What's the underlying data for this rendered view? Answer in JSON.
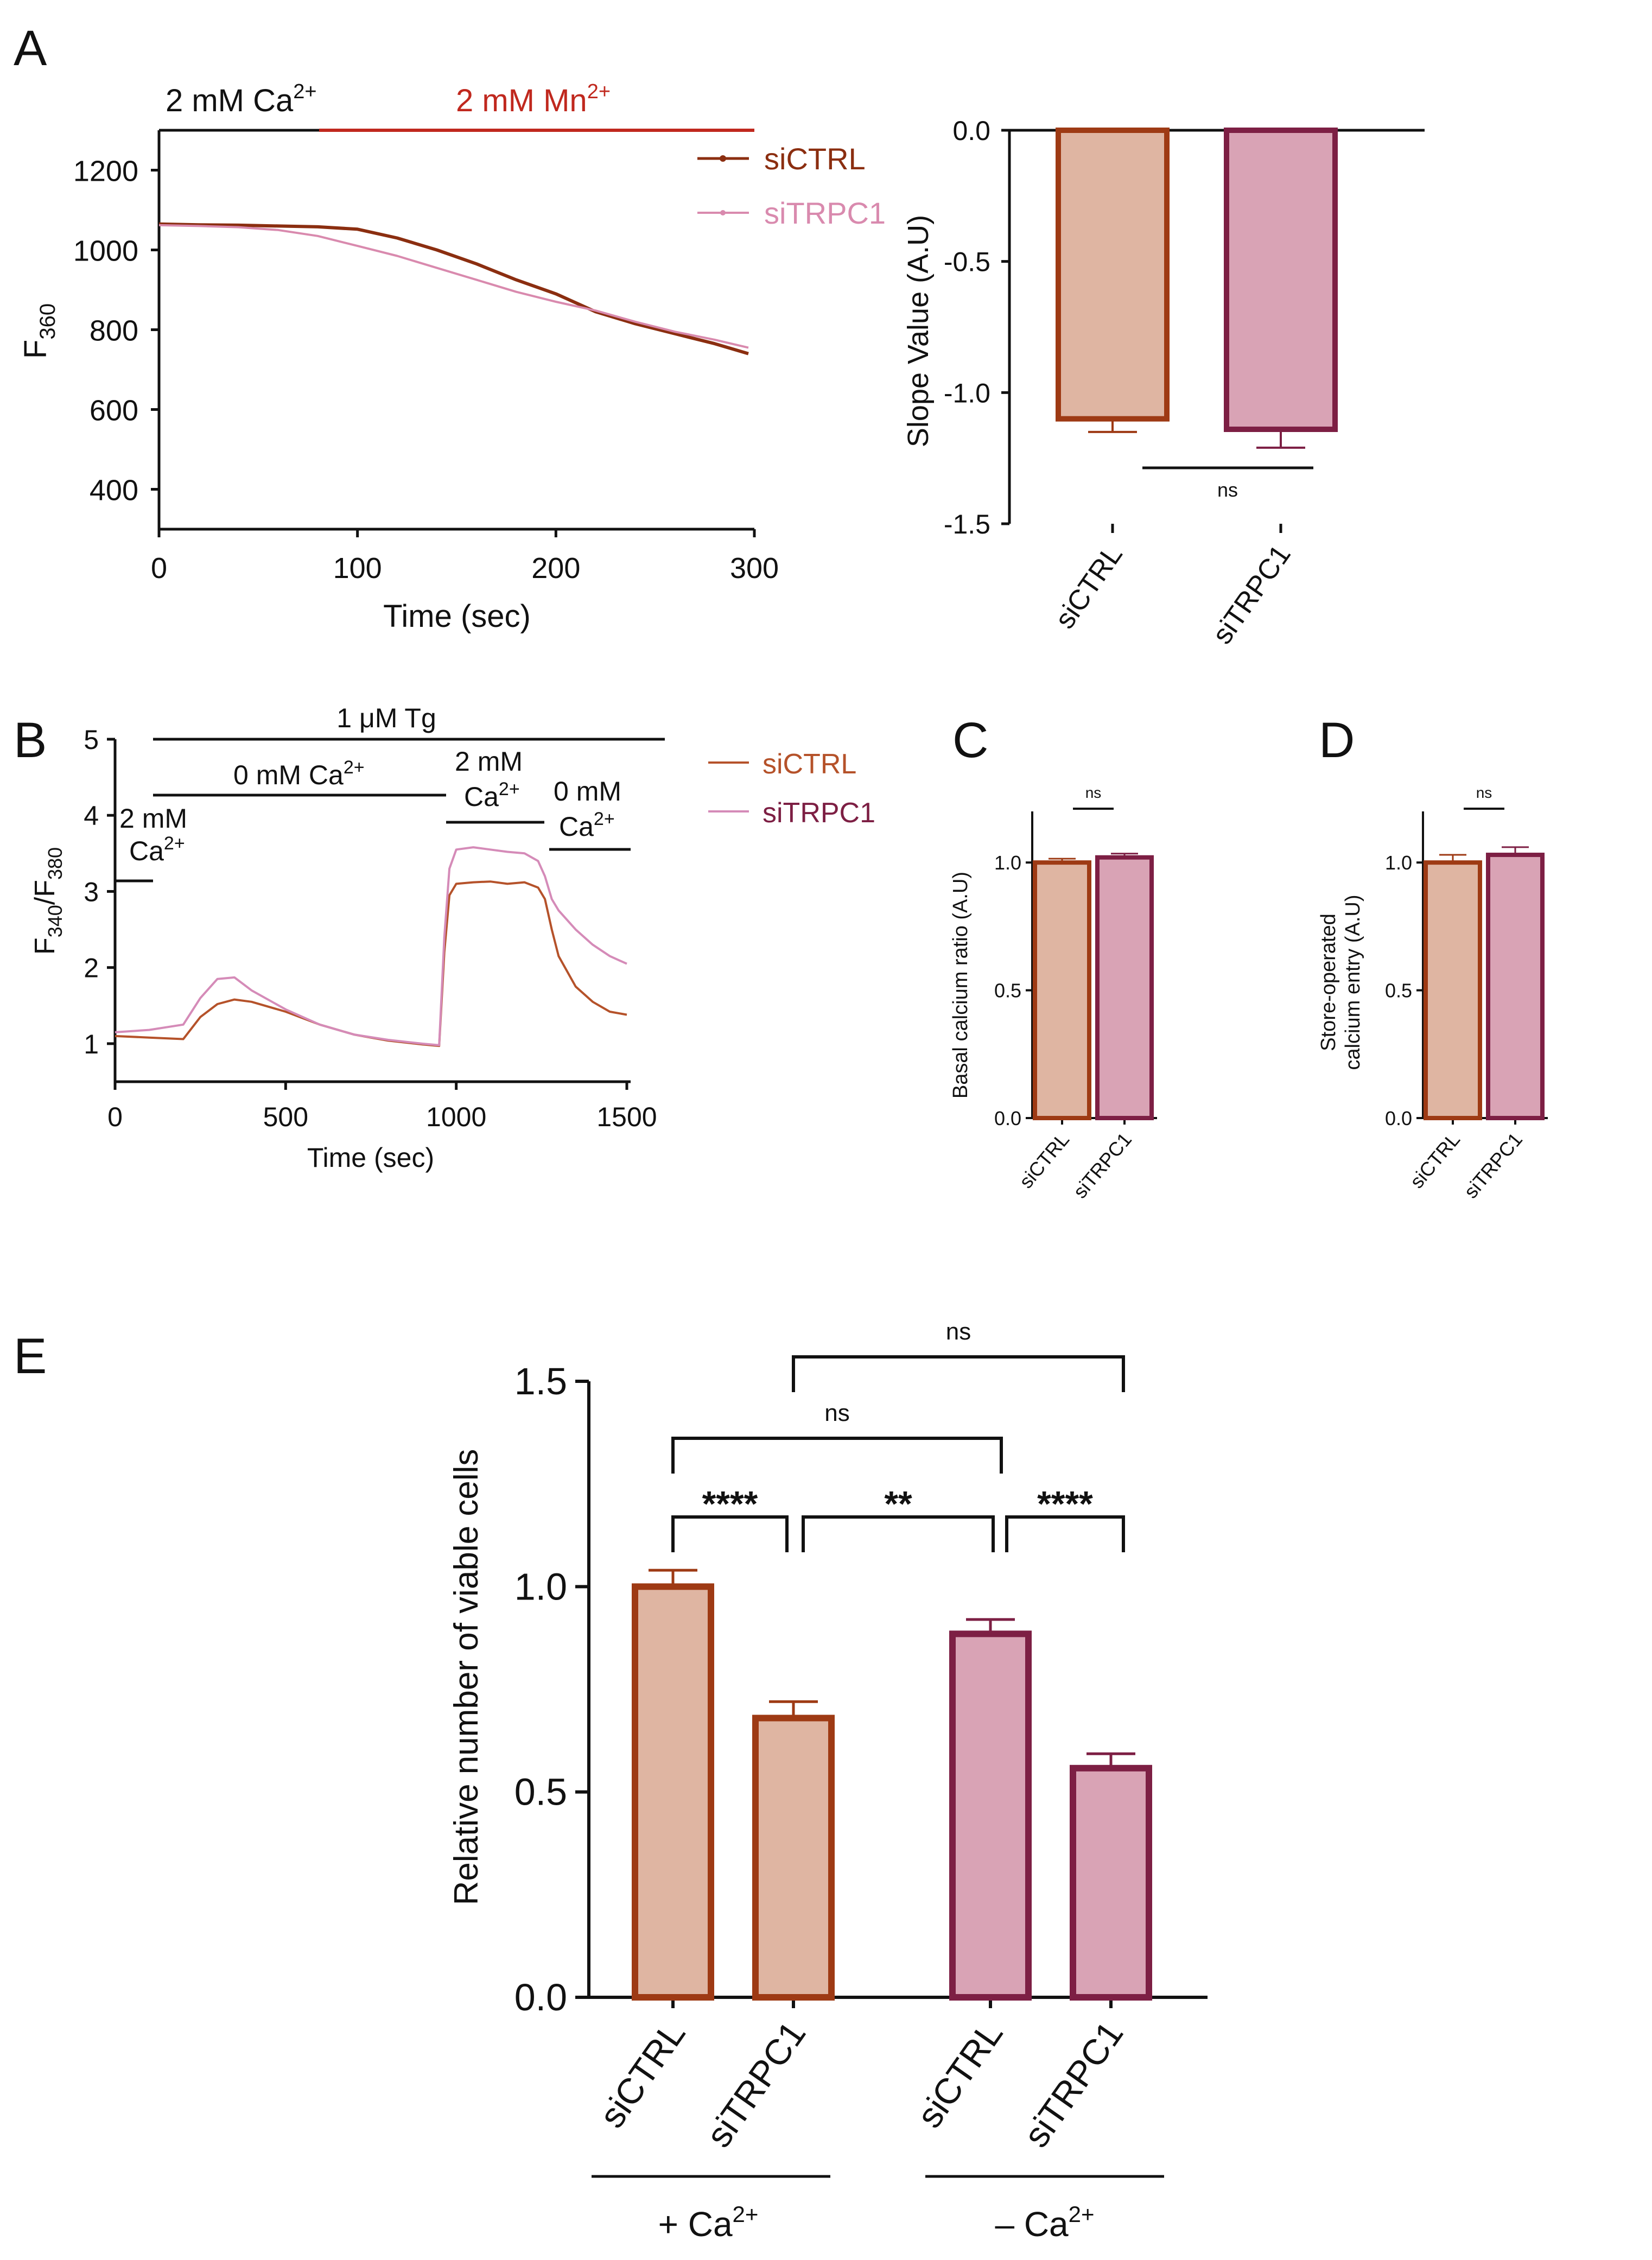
{
  "colors": {
    "ctrl_line": "#8B2E10",
    "trpc1_line": "#D98AAE",
    "b_ctrl_line": "#B5522A",
    "b_trpc1_line": "#D58BB8",
    "ctrl_fill": "#DFB5A2",
    "ctrl_edge": "#9E3A14",
    "trpc1_fill": "#D9A3B5",
    "trpc1_edge": "#7D1F44",
    "mn_red": "#C0281E",
    "trpc1_legend_text": "#7D1F44",
    "black": "#111111"
  },
  "panels": {
    "A": {
      "letter": "A",
      "bar_ca": "2 mM Ca",
      "bar_ca_sup": "2+",
      "bar_mn": "2 mM Mn",
      "bar_mn_sup": "2+",
      "ylabel": "F",
      "ylabel_sub": "360",
      "xlabel": "Time (sec)",
      "legend": [
        "siCTRL",
        "siTRPC1"
      ]
    },
    "A2": {
      "ylabel": "Slope Value (A.U)",
      "sig": "ns"
    },
    "B": {
      "letter": "B",
      "tg": "1 μM Tg",
      "ca0": "0 mM Ca",
      "ca0_sup": "2+",
      "ca2_left_1": "2 mM",
      "ca2_left_2": "Ca",
      "ca2_left_sup": "2+",
      "ca2_mid_1": "2 mM",
      "ca2_mid_2": "Ca",
      "ca2_mid_sup": "2+",
      "ca0_right_1": "0 mM",
      "ca0_right_2": "Ca",
      "ca0_right_sup": "2+",
      "ylabel": "F",
      "ylabel_sub1": "340",
      "ylabel_mid": "/F",
      "ylabel_sub2": "380",
      "xlabel": "Time (sec)",
      "legend": [
        "siCTRL",
        "siTRPC1"
      ]
    },
    "C": {
      "letter": "C",
      "ylabel": "Basal calcium ratio (A.U)",
      "sig": "ns"
    },
    "D": {
      "letter": "D",
      "ylabel_1": "Store-operated",
      "ylabel_2": "calcium entry (A.U)",
      "sig": "ns"
    },
    "E": {
      "letter": "E",
      "ylabel": "Relative number of viable cells",
      "group1": "+ Ca",
      "group1_sup": "2+",
      "group2": "– Ca",
      "group2_sup": "2+",
      "sig": [
        "****",
        "**",
        "****",
        "ns",
        "ns"
      ]
    }
  },
  "chart_data": [
    {
      "id": "A",
      "type": "line",
      "xlabel": "Time (sec)",
      "ylabel": "F360",
      "xlim": [
        0,
        300
      ],
      "ylim": [
        300,
        1300
      ],
      "xticks": [
        0,
        100,
        200,
        300
      ],
      "yticks": [
        400,
        600,
        800,
        1000,
        1200
      ],
      "series": [
        {
          "name": "siCTRL",
          "x": [
            0,
            20,
            40,
            60,
            80,
            100,
            120,
            140,
            160,
            180,
            200,
            220,
            240,
            260,
            280,
            297
          ],
          "y": [
            1065,
            1063,
            1062,
            1060,
            1058,
            1052,
            1030,
            1000,
            965,
            925,
            890,
            845,
            815,
            790,
            765,
            740
          ]
        },
        {
          "name": "siTRPC1",
          "x": [
            0,
            20,
            40,
            60,
            80,
            100,
            120,
            140,
            160,
            180,
            200,
            220,
            240,
            260,
            280,
            297
          ],
          "y": [
            1062,
            1060,
            1057,
            1050,
            1035,
            1010,
            985,
            955,
            925,
            895,
            870,
            848,
            820,
            795,
            775,
            755
          ]
        }
      ]
    },
    {
      "id": "A-slope",
      "type": "bar",
      "ylabel": "Slope Value (A.U)",
      "categories": [
        "siCTRL",
        "siTRPC1"
      ],
      "values": [
        -1.1,
        -1.14
      ],
      "errors": [
        0.05,
        0.07
      ],
      "ylim": [
        -1.5,
        0
      ],
      "yticks": [
        0.0,
        -0.5,
        -1.0,
        -1.5
      ],
      "significance": [
        {
          "from": "siCTRL",
          "to": "siTRPC1",
          "label": "ns"
        }
      ]
    },
    {
      "id": "B",
      "type": "line",
      "xlabel": "Time (sec)",
      "ylabel": "F340/F380",
      "xlim": [
        0,
        1500
      ],
      "ylim": [
        0.5,
        5
      ],
      "xticks": [
        0,
        500,
        1000,
        1500
      ],
      "yticks": [
        1,
        2,
        3,
        4,
        5
      ],
      "series": [
        {
          "name": "siCTRL",
          "x": [
            0,
            100,
            200,
            250,
            300,
            350,
            400,
            500,
            600,
            700,
            800,
            900,
            950,
            965,
            980,
            1000,
            1050,
            1100,
            1150,
            1200,
            1240,
            1260,
            1280,
            1300,
            1350,
            1400,
            1450,
            1500
          ],
          "y": [
            1.1,
            1.08,
            1.06,
            1.35,
            1.52,
            1.58,
            1.55,
            1.42,
            1.25,
            1.12,
            1.04,
            0.99,
            0.97,
            2.2,
            2.95,
            3.1,
            3.12,
            3.13,
            3.1,
            3.12,
            3.05,
            2.9,
            2.5,
            2.15,
            1.75,
            1.55,
            1.42,
            1.38
          ]
        },
        {
          "name": "siTRPC1",
          "x": [
            0,
            100,
            200,
            250,
            300,
            350,
            400,
            500,
            600,
            700,
            800,
            900,
            950,
            965,
            980,
            1000,
            1050,
            1100,
            1150,
            1200,
            1240,
            1260,
            1280,
            1300,
            1350,
            1400,
            1450,
            1500
          ],
          "y": [
            1.15,
            1.18,
            1.25,
            1.6,
            1.85,
            1.87,
            1.7,
            1.45,
            1.25,
            1.12,
            1.05,
            1.0,
            0.98,
            2.4,
            3.3,
            3.55,
            3.58,
            3.55,
            3.52,
            3.5,
            3.4,
            3.2,
            2.9,
            2.75,
            2.5,
            2.3,
            2.15,
            2.05
          ]
        }
      ]
    },
    {
      "id": "C",
      "type": "bar",
      "ylabel": "Basal calcium ratio (A.U)",
      "categories": [
        "siCTRL",
        "siTRPC1"
      ],
      "values": [
        1.0,
        1.02
      ],
      "errors": [
        0.015,
        0.015
      ],
      "ylim": [
        0,
        1.2
      ],
      "yticks": [
        0.0,
        0.5,
        1.0
      ],
      "significance": [
        {
          "from": "siCTRL",
          "to": "siTRPC1",
          "label": "ns"
        }
      ]
    },
    {
      "id": "D",
      "type": "bar",
      "ylabel": "Store-operated calcium entry (A.U)",
      "categories": [
        "siCTRL",
        "siTRPC1"
      ],
      "values": [
        1.0,
        1.03
      ],
      "errors": [
        0.03,
        0.03
      ],
      "ylim": [
        0,
        1.2
      ],
      "yticks": [
        0.0,
        0.5,
        1.0
      ],
      "significance": [
        {
          "from": "siCTRL",
          "to": "siTRPC1",
          "label": "ns"
        }
      ]
    },
    {
      "id": "E",
      "type": "bar",
      "ylabel": "Relative number of viable cells",
      "categories": [
        "siCTRL",
        "siTRPC1",
        "siCTRL",
        "siTRPC1"
      ],
      "groups": [
        "+ Ca2+",
        "+ Ca2+",
        "– Ca2+",
        "– Ca2+"
      ],
      "values": [
        1.0,
        0.68,
        0.885,
        0.558
      ],
      "errors": [
        0.04,
        0.04,
        0.035,
        0.035
      ],
      "ylim": [
        0,
        1.5
      ],
      "yticks": [
        0.0,
        0.5,
        1.0,
        1.5
      ],
      "significance": [
        {
          "from": 0,
          "to": 1,
          "label": "****"
        },
        {
          "from": 1,
          "to": 2,
          "label": "**"
        },
        {
          "from": 2,
          "to": 3,
          "label": "****"
        },
        {
          "from": 0,
          "to": 2,
          "label": "ns"
        },
        {
          "from": 1,
          "to": 3,
          "label": "ns"
        }
      ]
    }
  ]
}
